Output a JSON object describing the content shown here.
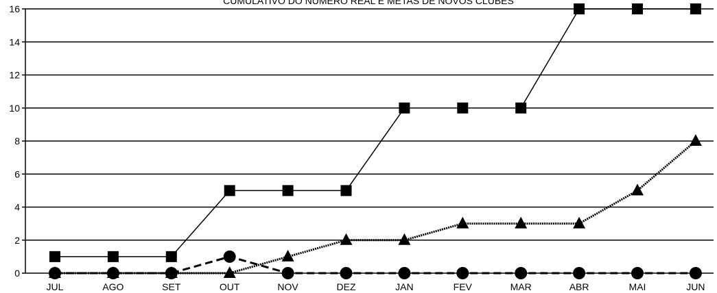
{
  "chart_data": {
    "type": "line",
    "title": "CUMULATIVO DO NÚMERO REAL E METAS DE NOVOS CLUBES",
    "categories": [
      "JUL",
      "AGO",
      "SET",
      "OUT",
      "NOV",
      "DEZ",
      "JAN",
      "FEV",
      "MAR",
      "ABR",
      "MAI",
      "JUN"
    ],
    "ylim": [
      0,
      16
    ],
    "yticks": [
      0,
      2,
      4,
      6,
      8,
      10,
      12,
      14,
      16
    ],
    "grid": true,
    "series": [
      {
        "marker": "square",
        "line": "solid",
        "color": "#000000",
        "values": [
          1,
          1,
          1,
          5,
          5,
          5,
          10,
          10,
          10,
          16,
          16,
          16
        ]
      },
      {
        "marker": "triangle",
        "line": "dotted",
        "color": "#000000",
        "values": [
          0,
          0,
          0,
          0,
          1,
          2,
          2,
          3,
          3,
          3,
          5,
          8
        ]
      },
      {
        "marker": "circle",
        "line": "dashed",
        "color": "#000000",
        "values": [
          0,
          0,
          0,
          1,
          0,
          0,
          0,
          0,
          0,
          0,
          0,
          0
        ]
      }
    ]
  }
}
